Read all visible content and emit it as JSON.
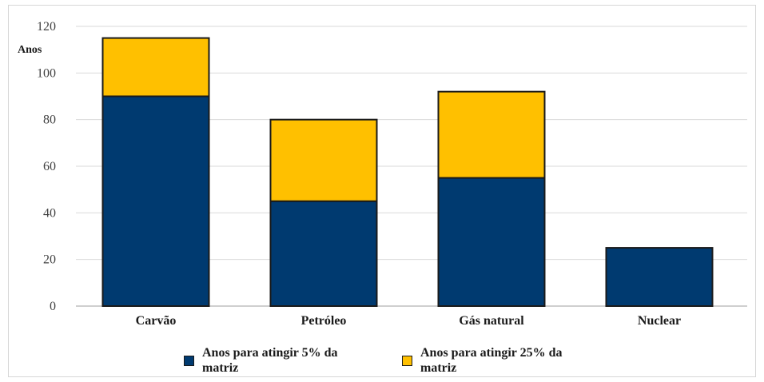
{
  "chart_data": {
    "type": "bar",
    "stacked": true,
    "ylabel": "Anos",
    "ylim": [
      0,
      120
    ],
    "yticks": [
      "0",
      "20",
      "40",
      "60",
      "80",
      "100",
      "120"
    ],
    "grid": true,
    "legend_position": "bottom",
    "categories": [
      "Carvão",
      "Petróleo",
      "Gás natural",
      "Nuclear"
    ],
    "series": [
      {
        "name": "Anos para atingir 5% da matriz",
        "color": "#003A70",
        "values": [
          90,
          45,
          55,
          25
        ]
      },
      {
        "name": "Anos para atingir 25% da matriz",
        "color": "#FFC000",
        "values": [
          25,
          35,
          37,
          0
        ]
      }
    ]
  }
}
